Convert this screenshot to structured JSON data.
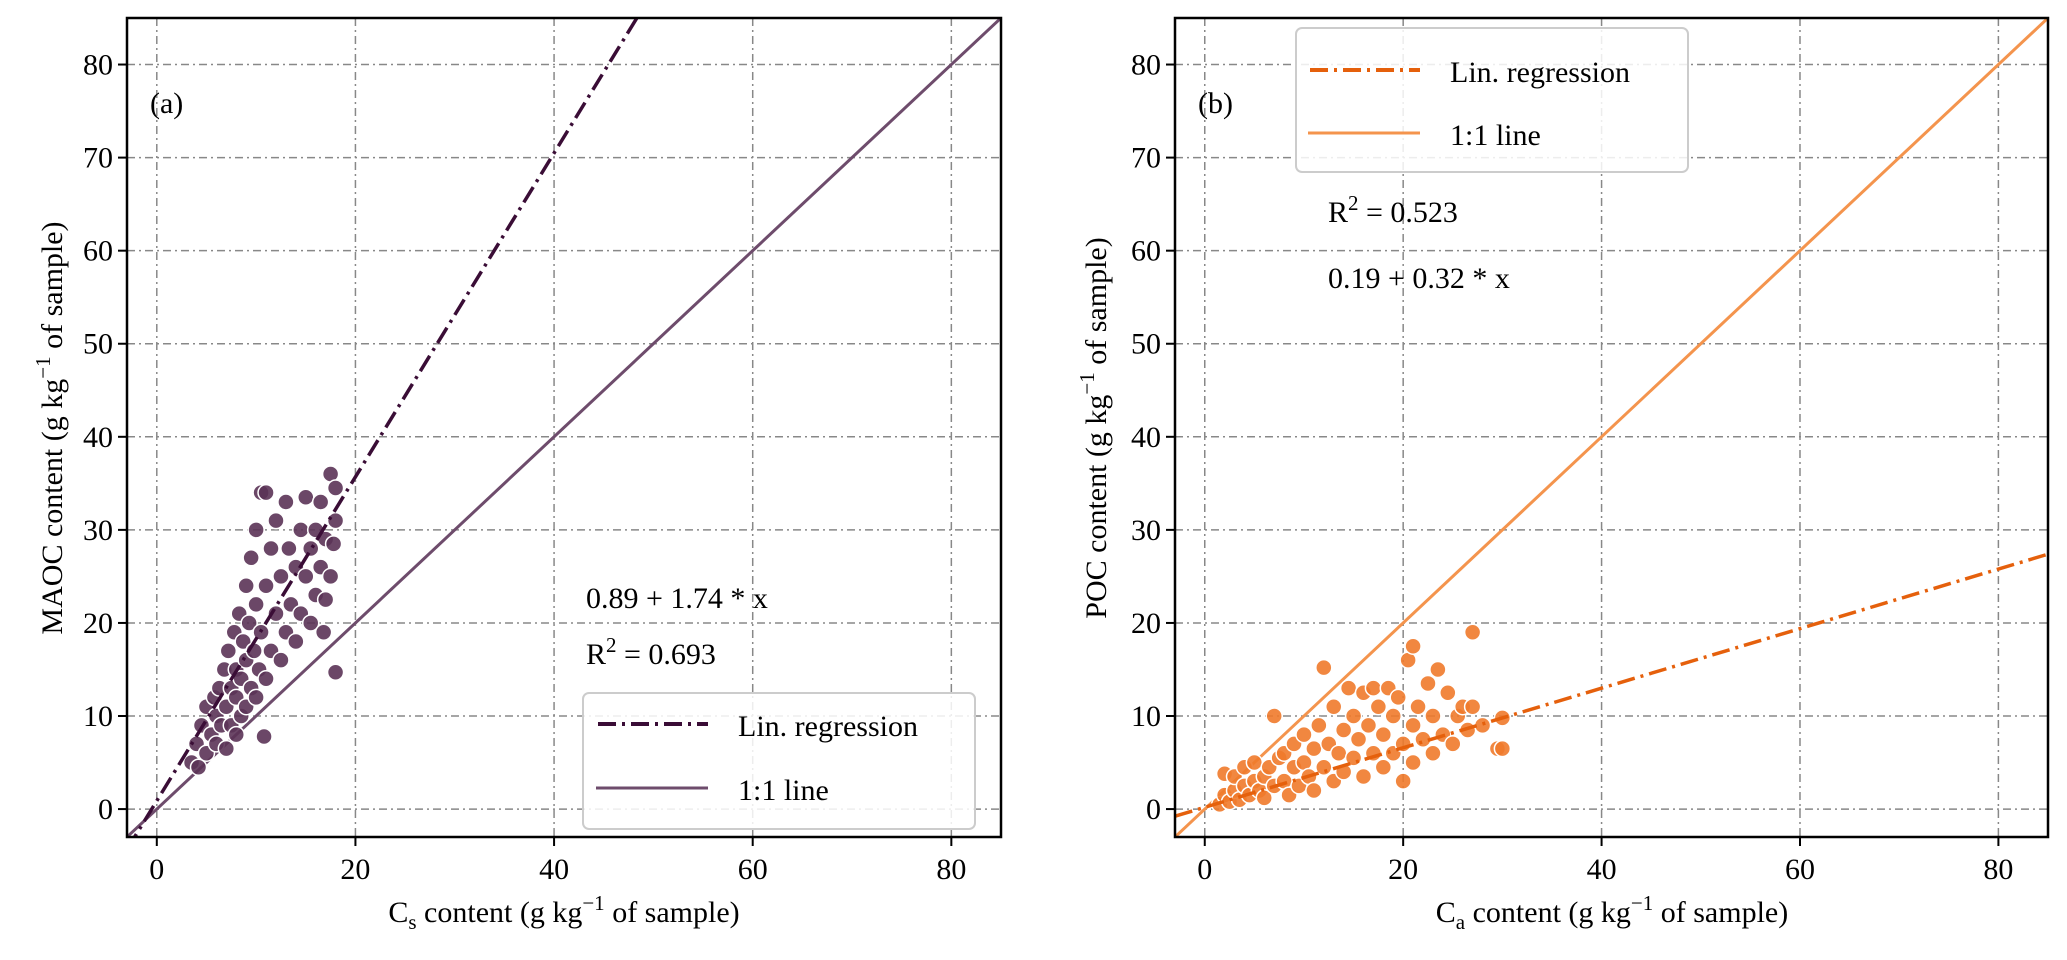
{
  "chart_data": [
    {
      "type": "scatter",
      "panel_label": "(a)",
      "xlabel": {
        "main": "C",
        "sub": "s",
        "mid": " content (g kg",
        "sup": "−1",
        "end": " of sample)"
      },
      "ylabel": {
        "main": "MAOC content (g kg",
        "sup": "−1",
        "end": " of sample)"
      },
      "xlim": [
        -3,
        85
      ],
      "ylim": [
        -3,
        85
      ],
      "xticks": [
        0,
        20,
        40,
        60,
        80
      ],
      "yticks": [
        0,
        10,
        20,
        30,
        40,
        50,
        60,
        70,
        80
      ],
      "grid": true,
      "equation": "0.89 + 1.74 * x",
      "r2": {
        "prefix": "R",
        "sup": "2",
        "value": " = 0.693"
      },
      "regression": {
        "intercept": 0.89,
        "slope": 1.74
      },
      "legend": {
        "placement": "lower-right",
        "regression_label": "Lin. regression",
        "identity_label": "1:1 line"
      },
      "colors": {
        "points": "#5b3356",
        "regression": "#3a0d36",
        "identity": "#6e4c6c"
      },
      "points": [
        [
          3.5,
          5
        ],
        [
          4,
          7
        ],
        [
          4.2,
          4.5
        ],
        [
          4.5,
          9
        ],
        [
          5,
          6
        ],
        [
          5,
          11
        ],
        [
          5.5,
          8
        ],
        [
          5.8,
          12
        ],
        [
          6,
          7
        ],
        [
          6,
          10
        ],
        [
          6.3,
          13
        ],
        [
          6.5,
          9
        ],
        [
          6.8,
          15
        ],
        [
          7,
          6.5
        ],
        [
          7,
          11
        ],
        [
          7.2,
          17
        ],
        [
          7.5,
          9
        ],
        [
          7.5,
          13
        ],
        [
          7.8,
          19
        ],
        [
          8,
          8
        ],
        [
          8,
          12
        ],
        [
          8,
          15
        ],
        [
          8.3,
          21
        ],
        [
          8.5,
          10
        ],
        [
          8.5,
          14
        ],
        [
          8.7,
          18
        ],
        [
          9,
          11
        ],
        [
          9,
          16
        ],
        [
          9,
          24
        ],
        [
          9.3,
          20
        ],
        [
          9.5,
          13
        ],
        [
          9.5,
          27
        ],
        [
          9.8,
          17
        ],
        [
          10,
          12
        ],
        [
          10,
          22
        ],
        [
          10,
          30
        ],
        [
          10.3,
          15
        ],
        [
          10.5,
          34
        ],
        [
          10.5,
          19
        ],
        [
          10.8,
          7.8
        ],
        [
          11,
          34
        ],
        [
          11,
          24
        ],
        [
          11,
          14
        ],
        [
          11.5,
          17
        ],
        [
          11.5,
          28
        ],
        [
          12,
          21
        ],
        [
          12,
          31
        ],
        [
          12.5,
          16
        ],
        [
          12.5,
          25
        ],
        [
          13,
          19
        ],
        [
          13,
          33
        ],
        [
          13.3,
          28
        ],
        [
          13.5,
          22
        ],
        [
          14,
          18
        ],
        [
          14,
          26
        ],
        [
          14.5,
          30
        ],
        [
          14.5,
          21
        ],
        [
          15,
          25
        ],
        [
          15,
          33.5
        ],
        [
          15.5,
          20
        ],
        [
          15.5,
          28
        ],
        [
          16,
          23
        ],
        [
          16,
          30
        ],
        [
          16.5,
          26
        ],
        [
          16.5,
          33
        ],
        [
          17,
          22.5
        ],
        [
          17,
          29
        ],
        [
          17.5,
          36
        ],
        [
          17.5,
          25
        ],
        [
          18,
          14.7
        ],
        [
          18,
          31
        ],
        [
          18,
          34.5
        ],
        [
          17.8,
          28.5
        ],
        [
          16.8,
          19
        ]
      ]
    },
    {
      "type": "scatter",
      "panel_label": "(b)",
      "xlabel": {
        "main": "C",
        "sub": "a",
        "mid": " content (g kg",
        "sup": "−1",
        "end": " of sample)"
      },
      "ylabel": {
        "main": "POC content (g kg",
        "sup": "−1",
        "end": " of sample)"
      },
      "xlim": [
        -3,
        85
      ],
      "ylim": [
        -3,
        85
      ],
      "xticks": [
        0,
        20,
        40,
        60,
        80
      ],
      "yticks": [
        0,
        10,
        20,
        30,
        40,
        50,
        60,
        70,
        80
      ],
      "grid": true,
      "equation": "0.19 + 0.32 * x",
      "r2": {
        "prefix": "R",
        "sup": "2",
        "value": " = 0.523"
      },
      "regression": {
        "intercept": 0.19,
        "slope": 0.32
      },
      "legend": {
        "placement": "upper-left",
        "regression_label": "Lin. regression",
        "identity_label": "1:1 line"
      },
      "colors": {
        "points": "#ef7a2b",
        "regression": "#e5600c",
        "identity": "#f4944d"
      },
      "points": [
        [
          1.5,
          0.5
        ],
        [
          2,
          1.5
        ],
        [
          2,
          3.8
        ],
        [
          2.5,
          0.8
        ],
        [
          3,
          2
        ],
        [
          3,
          3.5
        ],
        [
          3.5,
          1
        ],
        [
          4,
          2.5
        ],
        [
          4,
          4.5
        ],
        [
          4.5,
          1.5
        ],
        [
          5,
          3
        ],
        [
          5,
          5
        ],
        [
          5.5,
          2
        ],
        [
          6,
          3.5
        ],
        [
          6,
          1.2
        ],
        [
          6.5,
          4.5
        ],
        [
          7,
          10
        ],
        [
          7,
          2.5
        ],
        [
          7.5,
          5.5
        ],
        [
          8,
          3
        ],
        [
          8,
          6
        ],
        [
          8.5,
          1.5
        ],
        [
          9,
          4.5
        ],
        [
          9,
          7
        ],
        [
          9.5,
          2.5
        ],
        [
          10,
          5
        ],
        [
          10,
          8
        ],
        [
          10.5,
          3.5
        ],
        [
          11,
          6.5
        ],
        [
          11,
          2
        ],
        [
          11.5,
          9
        ],
        [
          12,
          15.2
        ],
        [
          12,
          4.5
        ],
        [
          12.5,
          7
        ],
        [
          13,
          3
        ],
        [
          13,
          11
        ],
        [
          13.5,
          6
        ],
        [
          14,
          8.5
        ],
        [
          14,
          4
        ],
        [
          14.5,
          13
        ],
        [
          15,
          5.5
        ],
        [
          15,
          10
        ],
        [
          15.5,
          7.5
        ],
        [
          16,
          12.5
        ],
        [
          16,
          3.5
        ],
        [
          16.5,
          9
        ],
        [
          17,
          13
        ],
        [
          17,
          6
        ],
        [
          17.5,
          11
        ],
        [
          18,
          4.5
        ],
        [
          18,
          8
        ],
        [
          18.5,
          13
        ],
        [
          19,
          10
        ],
        [
          19,
          6
        ],
        [
          19.5,
          12
        ],
        [
          20,
          7
        ],
        [
          20,
          3
        ],
        [
          20.5,
          16
        ],
        [
          21,
          17.5
        ],
        [
          21,
          9
        ],
        [
          21,
          5
        ],
        [
          21.5,
          11
        ],
        [
          22,
          7.5
        ],
        [
          22.5,
          13.5
        ],
        [
          23,
          10
        ],
        [
          23,
          6
        ],
        [
          23.5,
          15
        ],
        [
          24,
          8
        ],
        [
          24.5,
          12.5
        ],
        [
          25,
          7
        ],
        [
          25.5,
          10
        ],
        [
          26,
          11
        ],
        [
          26.5,
          8.5
        ],
        [
          27,
          19
        ],
        [
          27,
          11
        ],
        [
          28,
          9
        ],
        [
          29.5,
          6.5
        ],
        [
          30,
          9.8
        ],
        [
          30,
          6.5
        ]
      ]
    }
  ]
}
